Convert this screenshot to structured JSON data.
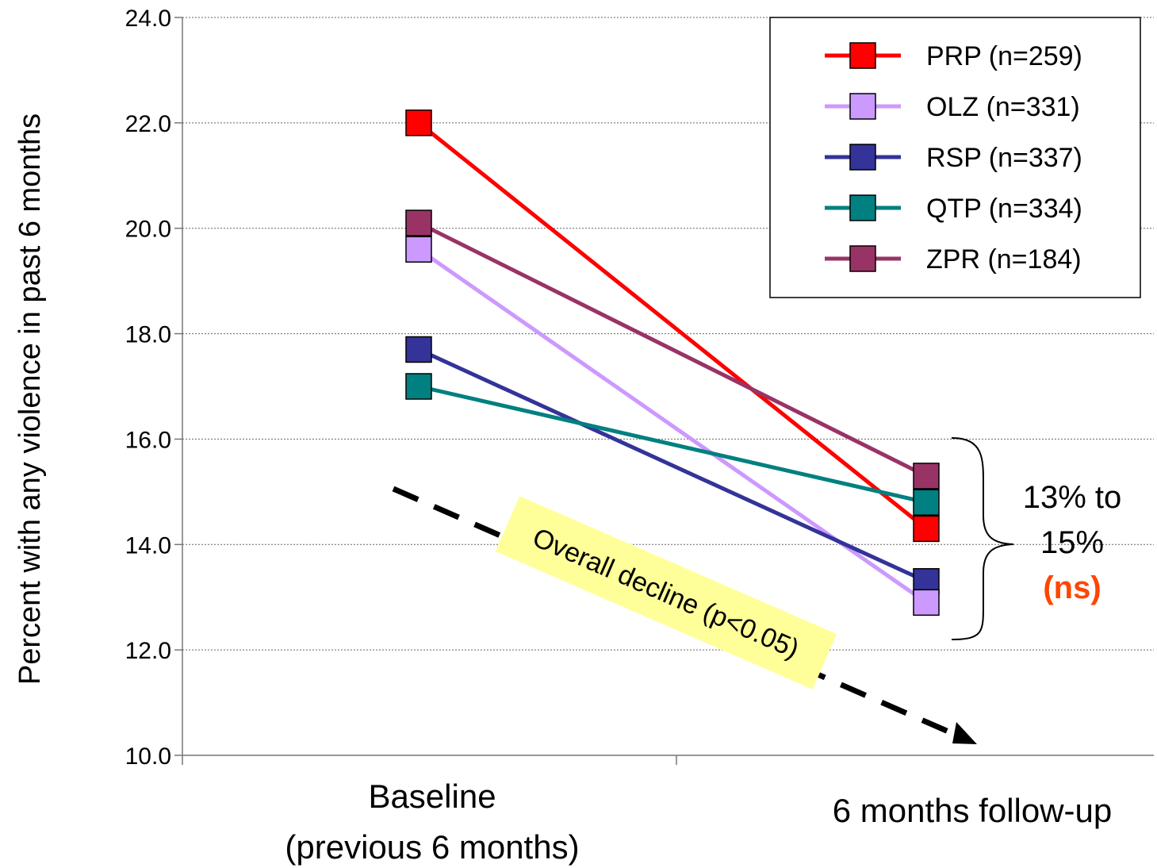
{
  "chart_data": {
    "type": "line",
    "title": "",
    "ylabel": "Percent with any violence in past 6 months",
    "categories": [
      "Baseline",
      "6 months follow-up"
    ],
    "category_lines": [
      [
        "Baseline",
        "(previous 6 months)"
      ],
      [
        "6 months follow-up"
      ]
    ],
    "ylim": [
      10.0,
      24.0
    ],
    "yticks": [
      "10.0",
      "12.0",
      "14.0",
      "16.0",
      "18.0",
      "20.0",
      "22.0",
      "24.0"
    ],
    "grid": true,
    "legend_position": "top-right",
    "series": [
      {
        "name": "PRP (n=259)",
        "color": "#ff0000",
        "values": [
          22.0,
          14.3
        ]
      },
      {
        "name": "OLZ (n=331)",
        "color": "#cc99ff",
        "values": [
          19.6,
          12.9
        ]
      },
      {
        "name": "RSP (n=337)",
        "color": "#333399",
        "values": [
          17.7,
          13.3
        ]
      },
      {
        "name": "QTP (n=334)",
        "color": "#008080",
        "values": [
          17.0,
          14.8
        ]
      },
      {
        "name": "ZPR (n=184)",
        "color": "#993366",
        "values": [
          20.1,
          15.3
        ]
      }
    ],
    "annotations": {
      "range_lines": [
        "13% to",
        "15%"
      ],
      "range_sig": "(ns)",
      "decline": "Overall decline (p<0.05)"
    }
  }
}
